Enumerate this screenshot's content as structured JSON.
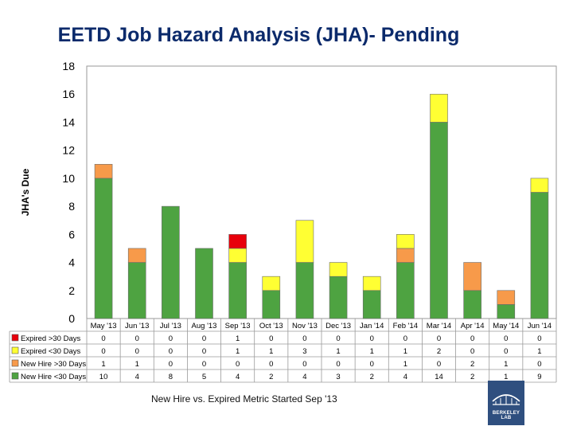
{
  "title": "EETD Job Hazard Analysis (JHA)- Pending",
  "footnote": "New Hire vs. Expired Metric Started Sep '13",
  "logo": {
    "text": "BERKELEY LAB",
    "icon": "berkeley-lab-building-icon"
  },
  "chart_data": {
    "type": "bar",
    "stacked": true,
    "ylabel": "JHA's Due",
    "xlabel": "",
    "ylim": [
      0,
      18
    ],
    "yticks": [
      0,
      2,
      4,
      6,
      8,
      10,
      12,
      14,
      16,
      18
    ],
    "grid": false,
    "legend": "data-table-left",
    "categories": [
      "May '13",
      "Jun '13",
      "Jul '13",
      "Aug '13",
      "Sep '13",
      "Oct '13",
      "Nov '13",
      "Dec '13",
      "Jan '14",
      "Feb '14",
      "Mar '14",
      "Apr '14",
      "May '14",
      "Jun '14"
    ],
    "series": [
      {
        "name": "New Hire <30 Days",
        "color": "#4ea341",
        "values": [
          10,
          4,
          8,
          5,
          4,
          2,
          4,
          3,
          2,
          4,
          14,
          2,
          1,
          9
        ]
      },
      {
        "name": "New Hire >30 Days",
        "color": "#f79a4a",
        "values": [
          1,
          1,
          0,
          0,
          0,
          0,
          0,
          0,
          0,
          1,
          0,
          2,
          1,
          0
        ]
      },
      {
        "name": "Expired <30 Days",
        "color": "#ffff33",
        "values": [
          0,
          0,
          0,
          0,
          1,
          1,
          3,
          1,
          1,
          1,
          2,
          0,
          0,
          1
        ]
      },
      {
        "name": "Expired >30 Days",
        "color": "#e8000b",
        "values": [
          0,
          0,
          0,
          0,
          1,
          0,
          0,
          0,
          0,
          0,
          0,
          0,
          0,
          0
        ]
      }
    ],
    "table_row_order": [
      "Expired >30 Days",
      "Expired <30 Days",
      "New Hire >30 Days",
      "New Hire <30 Days"
    ]
  }
}
